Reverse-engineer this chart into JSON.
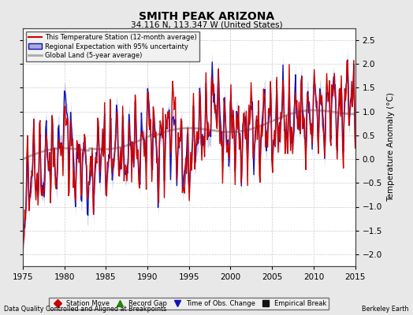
{
  "title": "SMITH PEAK ARIZONA",
  "subtitle": "34.116 N, 113.347 W (United States)",
  "ylabel": "Temperature Anomaly (°C)",
  "xlabel_left": "Data Quality Controlled and Aligned at Breakpoints",
  "xlabel_right": "Berkeley Earth",
  "year_start": 1975,
  "year_end": 2015,
  "ylim": [
    -2.25,
    2.75
  ],
  "yticks": [
    -2,
    -1.5,
    -1,
    -0.5,
    0,
    0.5,
    1,
    1.5,
    2,
    2.5
  ],
  "xticks": [
    1975,
    1980,
    1985,
    1990,
    1995,
    2000,
    2005,
    2010,
    2015
  ],
  "bg_color": "#e8e8e8",
  "plot_bg_color": "#ffffff",
  "red_color": "#cc0000",
  "blue_color": "#1111bb",
  "blue_fill_color": "#aaaadd",
  "gray_color": "#aaaaaa",
  "legend_items": [
    {
      "label": "This Temperature Station (12-month average)",
      "color": "#cc0000",
      "lw": 1.5
    },
    {
      "label": "Regional Expectation with 95% uncertainty",
      "color": "#1111bb",
      "lw": 1.2
    },
    {
      "label": "Global Land (5-year average)",
      "color": "#aaaaaa",
      "lw": 2.0
    }
  ],
  "bottom_legend": [
    {
      "label": "Station Move",
      "color": "#cc0000",
      "marker": "D"
    },
    {
      "label": "Record Gap",
      "color": "#228800",
      "marker": "^"
    },
    {
      "label": "Time of Obs. Change",
      "color": "#1111bb",
      "marker": "v"
    },
    {
      "label": "Empirical Break",
      "color": "#111111",
      "marker": "s"
    }
  ]
}
